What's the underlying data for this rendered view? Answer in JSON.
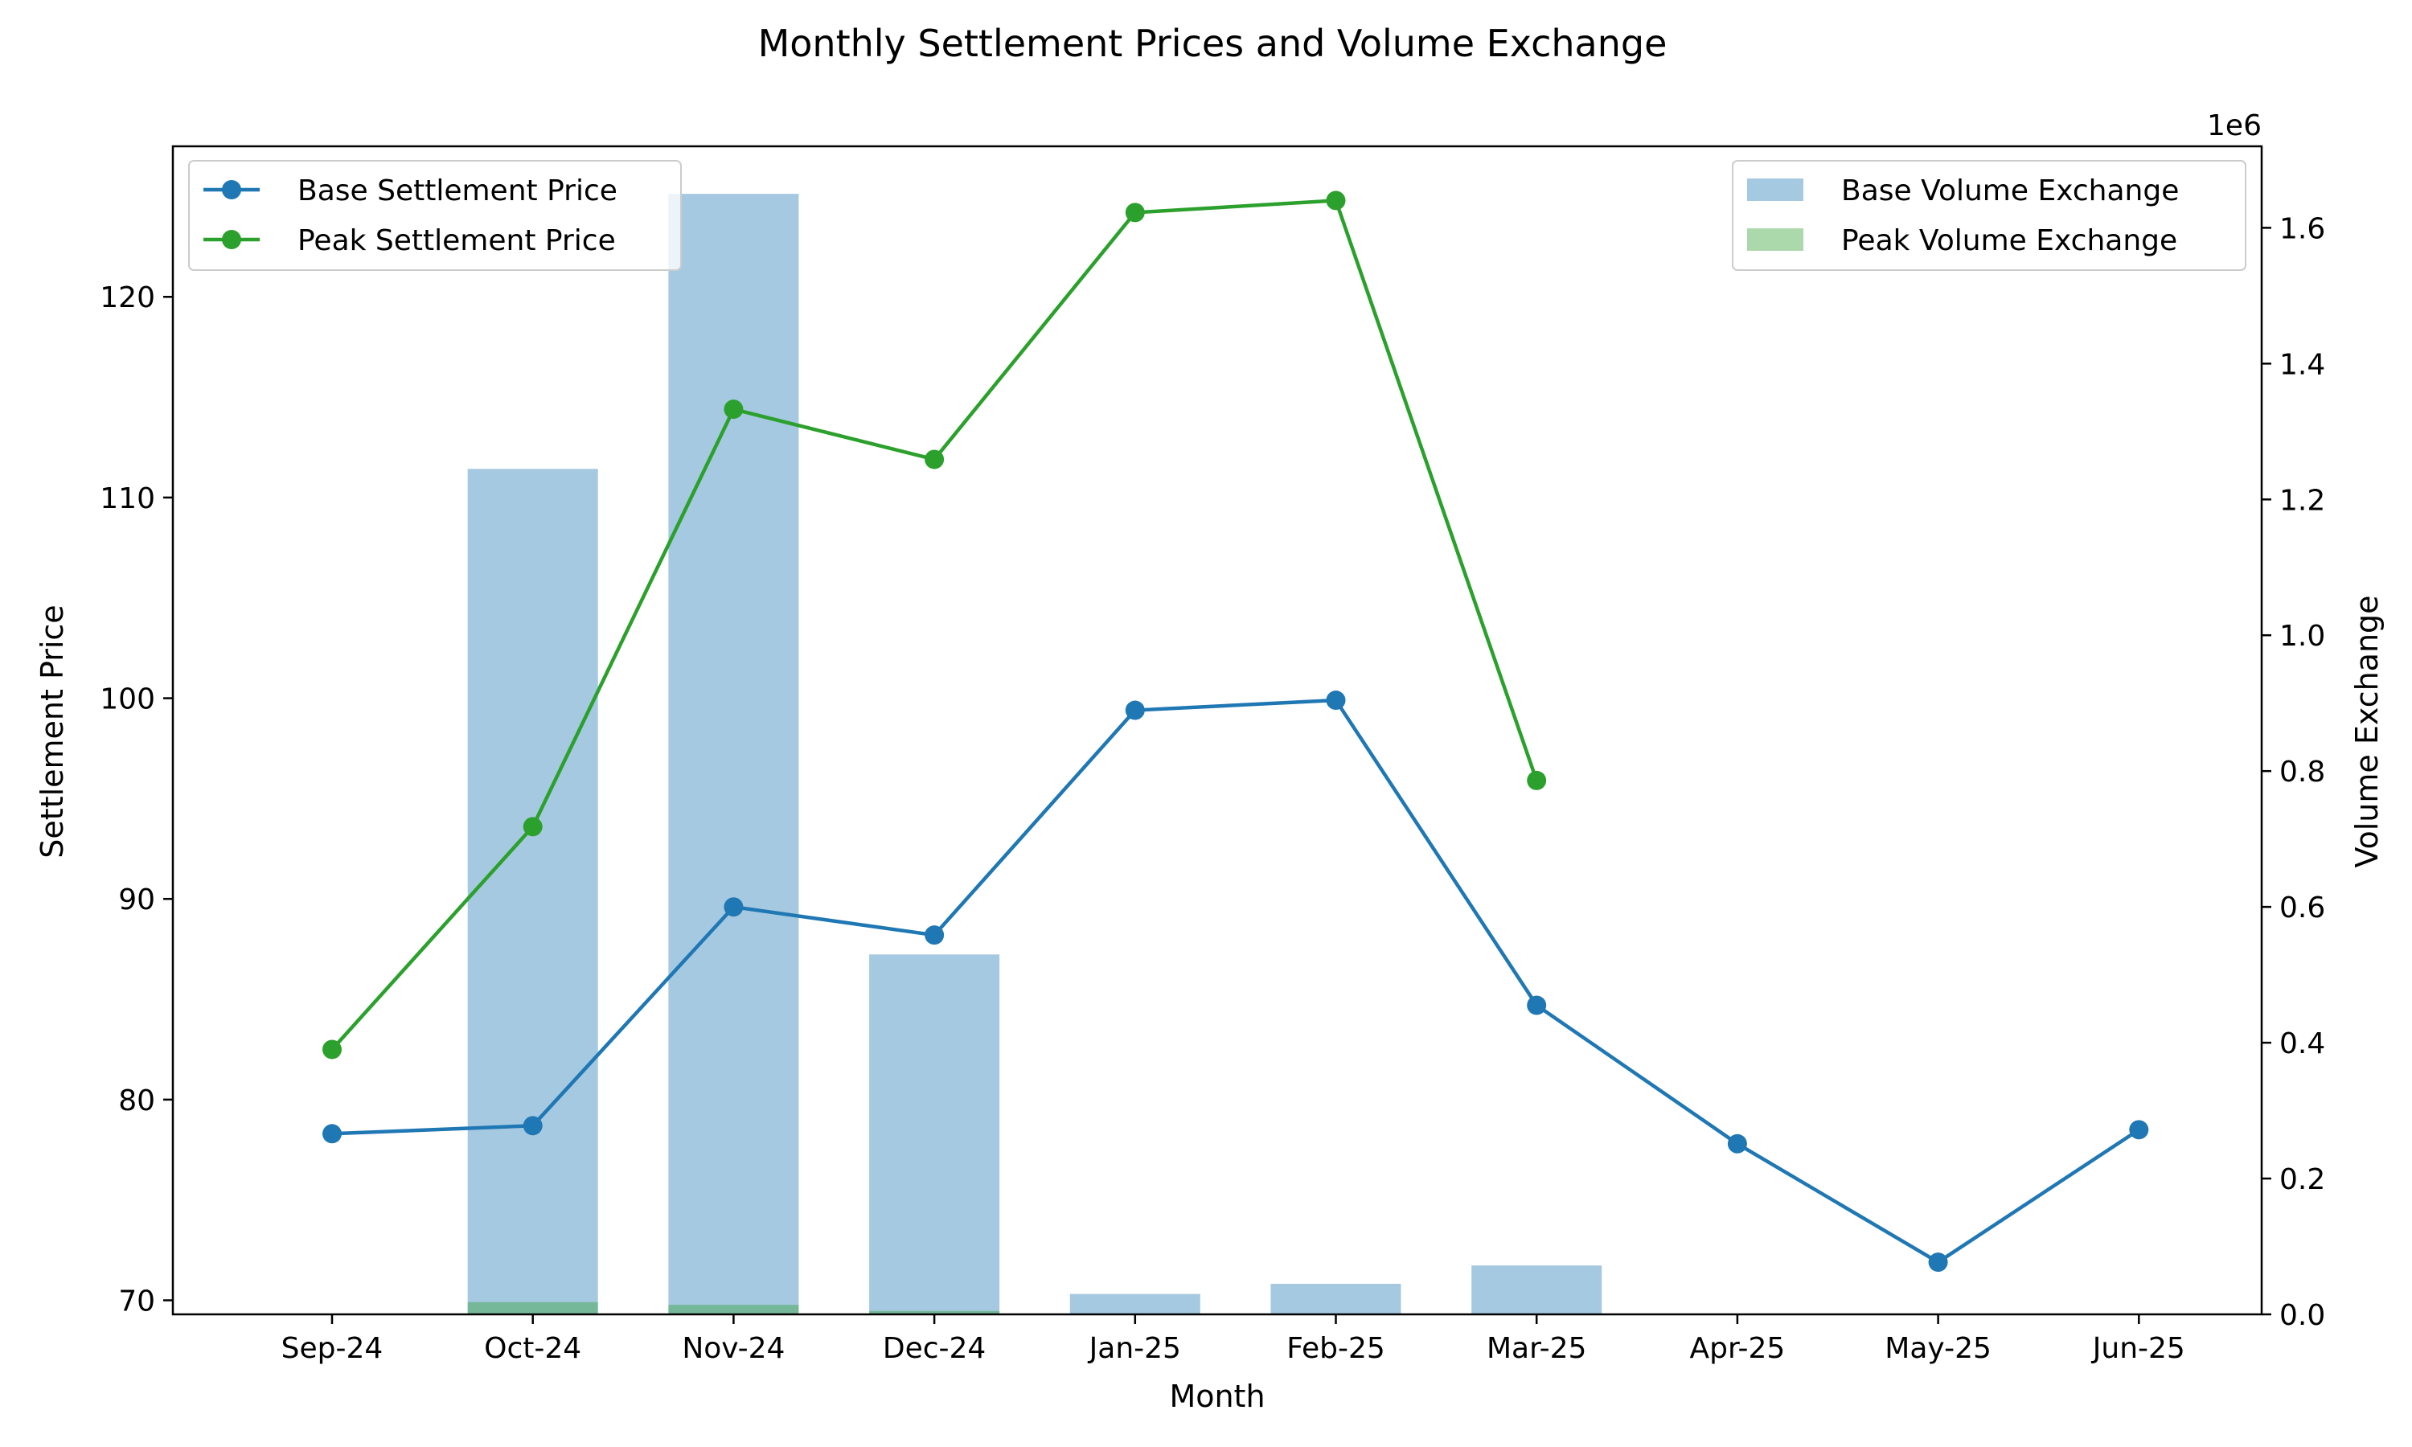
{
  "chart_data": {
    "type": "bar+line",
    "title": "Monthly Settlement Prices and Volume Exchange",
    "xlabel": "Month",
    "ylabel_left": "Settlement Price",
    "ylabel_right": "Volume Exchange",
    "right_axis_multiplier": "1e6",
    "categories": [
      "Sep-24",
      "Oct-24",
      "Nov-24",
      "Dec-24",
      "Jan-25",
      "Feb-25",
      "Mar-25",
      "Apr-25",
      "May-25",
      "Jun-25"
    ],
    "ylim_left": [
      69.3,
      127.5
    ],
    "yticks_left": [
      70,
      80,
      90,
      100,
      110,
      120
    ],
    "ylim_right": [
      0,
      1720000
    ],
    "yticks_right": [
      0,
      200000,
      400000,
      600000,
      800000,
      1000000,
      1200000,
      1400000,
      1600000
    ],
    "ytick_labels_right": [
      "0.0",
      "0.2",
      "0.4",
      "0.6",
      "0.8",
      "1.0",
      "1.2",
      "1.4",
      "1.6"
    ],
    "grid": false,
    "legend_left": "top-left",
    "legend_right": "top-right",
    "line_series": [
      {
        "name": "Base Settlement Price",
        "color": "#1f77b4",
        "values": [
          78.3,
          78.7,
          89.6,
          88.2,
          99.4,
          99.9,
          84.7,
          77.8,
          71.9,
          78.5
        ]
      },
      {
        "name": "Peak Settlement Price",
        "color": "#2ca02c",
        "values": [
          82.5,
          93.6,
          114.4,
          111.9,
          124.2,
          124.8,
          95.9,
          null,
          null,
          null
        ]
      }
    ],
    "bar_series": [
      {
        "name": "Base Volume Exchange",
        "color": "#1f77b4",
        "opacity": 0.4,
        "values": [
          0,
          1245000,
          1650000,
          530000,
          30000,
          45000,
          72000,
          0,
          0,
          0
        ]
      },
      {
        "name": "Peak Volume Exchange",
        "color": "#2ca02c",
        "opacity": 0.4,
        "values": [
          0,
          18000,
          14000,
          5000,
          0,
          0,
          0,
          0,
          0,
          0
        ]
      }
    ]
  }
}
